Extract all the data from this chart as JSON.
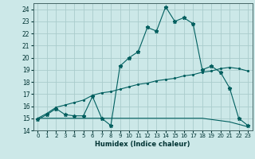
{
  "xlabel": "Humidex (Indice chaleur)",
  "bg_color": "#cce8e8",
  "grid_color": "#aacccc",
  "line_color": "#005f5f",
  "xlim": [
    -0.5,
    23.5
  ],
  "ylim": [
    14,
    24.5
  ],
  "yticks": [
    14,
    15,
    16,
    17,
    18,
    19,
    20,
    21,
    22,
    23,
    24
  ],
  "xticks": [
    0,
    1,
    2,
    3,
    4,
    5,
    6,
    7,
    8,
    9,
    10,
    11,
    12,
    13,
    14,
    15,
    16,
    17,
    18,
    19,
    20,
    21,
    22,
    23
  ],
  "line1_x": [
    0,
    1,
    2,
    3,
    4,
    5,
    6,
    7,
    8,
    9,
    10,
    11,
    12,
    13,
    14,
    15,
    16,
    17,
    18,
    19,
    20,
    21,
    22,
    23
  ],
  "line1_y": [
    14.9,
    15.3,
    15.8,
    15.3,
    15.2,
    15.2,
    16.8,
    15.0,
    14.4,
    19.3,
    20.0,
    20.5,
    22.5,
    22.2,
    24.2,
    23.0,
    23.3,
    22.8,
    19.0,
    19.3,
    18.8,
    17.5,
    15.0,
    14.4
  ],
  "line2_x": [
    0,
    1,
    2,
    3,
    4,
    5,
    6,
    7,
    8,
    9,
    10,
    11,
    12,
    13,
    14,
    15,
    16,
    17,
    18,
    19,
    20,
    21,
    22,
    23
  ],
  "line2_y": [
    15.0,
    15.0,
    15.0,
    15.0,
    15.0,
    15.0,
    15.0,
    15.0,
    15.0,
    15.0,
    15.0,
    15.0,
    15.0,
    15.0,
    15.0,
    15.0,
    15.0,
    15.0,
    15.0,
    14.9,
    14.8,
    14.7,
    14.5,
    14.3
  ],
  "line3_x": [
    0,
    1,
    2,
    3,
    4,
    5,
    6,
    7,
    8,
    9,
    10,
    11,
    12,
    13,
    14,
    15,
    16,
    17,
    18,
    19,
    20,
    21,
    22,
    23
  ],
  "line3_y": [
    15.0,
    15.4,
    15.9,
    16.1,
    16.3,
    16.5,
    16.9,
    17.1,
    17.2,
    17.4,
    17.6,
    17.8,
    17.9,
    18.1,
    18.2,
    18.3,
    18.5,
    18.6,
    18.8,
    18.9,
    19.1,
    19.2,
    19.1,
    18.9
  ]
}
